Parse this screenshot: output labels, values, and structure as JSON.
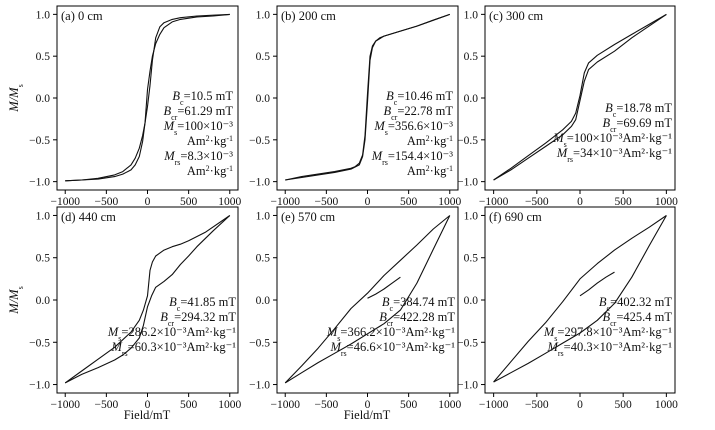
{
  "figure": {
    "xlabel": "Field/mT",
    "ylabel": "M/M",
    "ylabel_sub": "s"
  },
  "chart_data": [
    {
      "type": "line",
      "panel": "(a) 0 cm",
      "xlim": [
        -1100,
        1100
      ],
      "ylim": [
        -1.1,
        1.1
      ],
      "xticks": [
        -1000,
        -500,
        0,
        500,
        1000
      ],
      "yticks": [
        -1.0,
        -0.5,
        0.0,
        0.5,
        1.0
      ],
      "params": {
        "Bc": "10.5",
        "Bcr": "61.29",
        "Ms": "100×10⁻³",
        "Mrs": "8.3×10⁻³"
      },
      "series": [
        {
          "x": [
            -1000,
            -800,
            -600,
            -400,
            -300,
            -200,
            -150,
            -100,
            -60,
            -30,
            0,
            30,
            60,
            100,
            150,
            200,
            300,
            400,
            600,
            800,
            1000
          ],
          "y": [
            -0.99,
            -0.98,
            -0.96,
            -0.92,
            -0.88,
            -0.8,
            -0.72,
            -0.6,
            -0.45,
            -0.3,
            -0.1,
            0.15,
            0.45,
            0.72,
            0.85,
            0.9,
            0.94,
            0.96,
            0.98,
            0.99,
            1.0
          ]
        },
        {
          "x": [
            -1000,
            -800,
            -600,
            -400,
            -300,
            -200,
            -150,
            -100,
            -60,
            -30,
            0,
            30,
            60,
            100,
            150,
            200,
            300,
            400,
            600,
            800,
            1000
          ],
          "y": [
            -0.99,
            -0.98,
            -0.97,
            -0.94,
            -0.91,
            -0.86,
            -0.8,
            -0.7,
            -0.52,
            -0.3,
            0.1,
            0.32,
            0.5,
            0.65,
            0.76,
            0.84,
            0.91,
            0.94,
            0.97,
            0.98,
            1.0
          ]
        }
      ]
    },
    {
      "type": "line",
      "panel": "(b) 200 cm",
      "xlim": [
        -1100,
        1100
      ],
      "ylim": [
        -1.1,
        1.1
      ],
      "xticks": [
        -1000,
        -500,
        0,
        500,
        1000
      ],
      "yticks": [
        -1.0,
        -0.5,
        0.0,
        0.5,
        1.0
      ],
      "params": {
        "Bc": "10.46",
        "Bcr": "22.78",
        "Ms": "356.6×10⁻³",
        "Mrs": "154.4×10⁻³"
      },
      "series": [
        {
          "x": [
            -1000,
            -800,
            -600,
            -400,
            -200,
            -100,
            -60,
            -30,
            0,
            30,
            60,
            100,
            150,
            200,
            400,
            600,
            800,
            1000
          ],
          "y": [
            -0.98,
            -0.95,
            -0.92,
            -0.89,
            -0.85,
            -0.8,
            -0.7,
            -0.5,
            -0.05,
            0.45,
            0.6,
            0.68,
            0.72,
            0.74,
            0.8,
            0.86,
            0.93,
            1.0
          ]
        },
        {
          "x": [
            -1000,
            -800,
            -600,
            -400,
            -200,
            -150,
            -100,
            -60,
            -30,
            0,
            30,
            60,
            100,
            200,
            400,
            600,
            800,
            1000
          ],
          "y": [
            -0.98,
            -0.94,
            -0.91,
            -0.88,
            -0.84,
            -0.82,
            -0.78,
            -0.68,
            -0.45,
            0.05,
            0.5,
            0.62,
            0.68,
            0.74,
            0.8,
            0.86,
            0.93,
            1.0
          ]
        }
      ]
    },
    {
      "type": "line",
      "panel": "(c) 300 cm",
      "xlim": [
        -1100,
        1100
      ],
      "ylim": [
        -1.1,
        1.1
      ],
      "xticks": [
        -1000,
        -500,
        0,
        500,
        1000
      ],
      "yticks": [
        -1.0,
        -0.5,
        0.0,
        0.5,
        1.0
      ],
      "params": {
        "Bc": "18.78",
        "Bcr": "69.69",
        "Ms": "100×10⁻³Am²·kg⁻¹",
        "Mrs": "34×10⁻³Am²·kg⁻¹"
      },
      "series": [
        {
          "x": [
            -1000,
            -800,
            -600,
            -400,
            -200,
            -100,
            -50,
            0,
            50,
            100,
            200,
            400,
            600,
            800,
            1000
          ],
          "y": [
            -0.98,
            -0.84,
            -0.69,
            -0.54,
            -0.38,
            -0.28,
            -0.18,
            0.03,
            0.3,
            0.42,
            0.51,
            0.64,
            0.76,
            0.88,
            1.0
          ]
        },
        {
          "x": [
            -1000,
            -800,
            -600,
            -400,
            -200,
            -100,
            -50,
            0,
            50,
            100,
            200,
            400,
            600,
            800,
            1000
          ],
          "y": [
            -0.98,
            -0.86,
            -0.72,
            -0.58,
            -0.44,
            -0.34,
            -0.26,
            -0.03,
            0.2,
            0.34,
            0.43,
            0.56,
            0.72,
            0.86,
            1.0
          ]
        }
      ]
    },
    {
      "type": "line",
      "panel": "(d) 440 cm",
      "xlim": [
        -1100,
        1100
      ],
      "ylim": [
        -1.1,
        1.1
      ],
      "xticks": [
        -1000,
        -500,
        0,
        500,
        1000
      ],
      "yticks": [
        -1.0,
        -0.5,
        0.0,
        0.5,
        1.0
      ],
      "params": {
        "Bc": "41.85",
        "Bcr": "294.32",
        "Ms": "286.2×10⁻³Am²·kg⁻¹",
        "Mrs": "60.3×10⁻³Am²·kg⁻¹"
      },
      "series": [
        {
          "x": [
            -1000,
            -800,
            -600,
            -400,
            -200,
            -100,
            -50,
            0,
            30,
            60,
            100,
            200,
            300,
            400,
            500,
            700,
            1000
          ],
          "y": [
            -0.98,
            -0.84,
            -0.7,
            -0.56,
            -0.38,
            -0.24,
            -0.12,
            0.05,
            0.35,
            0.45,
            0.52,
            0.59,
            0.63,
            0.66,
            0.7,
            0.8,
            1.0
          ]
        },
        {
          "x": [
            -1000,
            -800,
            -600,
            -400,
            -300,
            -200,
            -100,
            -50,
            0,
            50,
            100,
            200,
            300,
            400,
            500,
            600,
            800,
            1000
          ],
          "y": [
            -0.98,
            -0.88,
            -0.8,
            -0.71,
            -0.65,
            -0.57,
            -0.45,
            -0.3,
            -0.08,
            0.05,
            0.15,
            0.22,
            0.3,
            0.42,
            0.52,
            0.63,
            0.82,
            1.0
          ]
        }
      ]
    },
    {
      "type": "line",
      "panel": "(e) 570 cm",
      "xlim": [
        -1100,
        1100
      ],
      "ylim": [
        -1.1,
        1.1
      ],
      "xticks": [
        -1000,
        -500,
        0,
        500,
        1000
      ],
      "yticks": [
        -1.0,
        -0.5,
        0.0,
        0.5,
        1.0
      ],
      "params": {
        "Bc": "384.74",
        "Bcr": "422.28",
        "Ms": "366.2×10⁻³Am²·kg⁻¹",
        "Mrs": "46.6×10⁻³Am²·kg⁻¹"
      },
      "series": [
        {
          "x": [
            -1000,
            -800,
            -600,
            -400,
            -200,
            0,
            200,
            400,
            600,
            800,
            1000
          ],
          "y": [
            -0.98,
            -0.78,
            -0.57,
            -0.34,
            -0.1,
            0.08,
            0.29,
            0.47,
            0.65,
            0.84,
            1.0
          ]
        },
        {
          "x": [
            -1000,
            -800,
            -600,
            -400,
            -200,
            0,
            200,
            400,
            600,
            800,
            1000
          ],
          "y": [
            -0.98,
            -0.86,
            -0.74,
            -0.63,
            -0.52,
            -0.4,
            -0.28,
            -0.12,
            0.2,
            0.6,
            1.0
          ]
        },
        {
          "x": [
            0,
            100,
            200,
            300,
            400
          ],
          "y": [
            0.02,
            0.07,
            0.13,
            0.2,
            0.27
          ]
        }
      ]
    },
    {
      "type": "line",
      "panel": "(f) 690 cm",
      "xlim": [
        -1100,
        1100
      ],
      "ylim": [
        -1.1,
        1.1
      ],
      "xticks": [
        -1000,
        -500,
        0,
        500,
        1000
      ],
      "yticks": [
        -1.0,
        -0.5,
        0.0,
        0.5,
        1.0
      ],
      "params": {
        "Bc": "402.32",
        "Bcr": "425.4",
        "Ms": "297.8×10⁻³Am²·kg⁻¹",
        "Mrs": "40.3×10⁻³Am²·kg⁻¹"
      },
      "series": [
        {
          "x": [
            -1000,
            -800,
            -600,
            -400,
            -200,
            0,
            200,
            400,
            600,
            800,
            1000
          ],
          "y": [
            -0.97,
            -0.73,
            -0.49,
            -0.27,
            -0.02,
            0.25,
            0.43,
            0.59,
            0.73,
            0.86,
            1.0
          ]
        },
        {
          "x": [
            -1000,
            -800,
            -600,
            -400,
            -200,
            0,
            200,
            400,
            600,
            800,
            1000
          ],
          "y": [
            -0.97,
            -0.86,
            -0.75,
            -0.63,
            -0.51,
            -0.39,
            -0.24,
            -0.04,
            0.27,
            0.64,
            1.0
          ]
        },
        {
          "x": [
            0,
            100,
            200,
            300,
            400
          ],
          "y": [
            0.05,
            0.12,
            0.2,
            0.27,
            0.33
          ]
        }
      ]
    }
  ]
}
